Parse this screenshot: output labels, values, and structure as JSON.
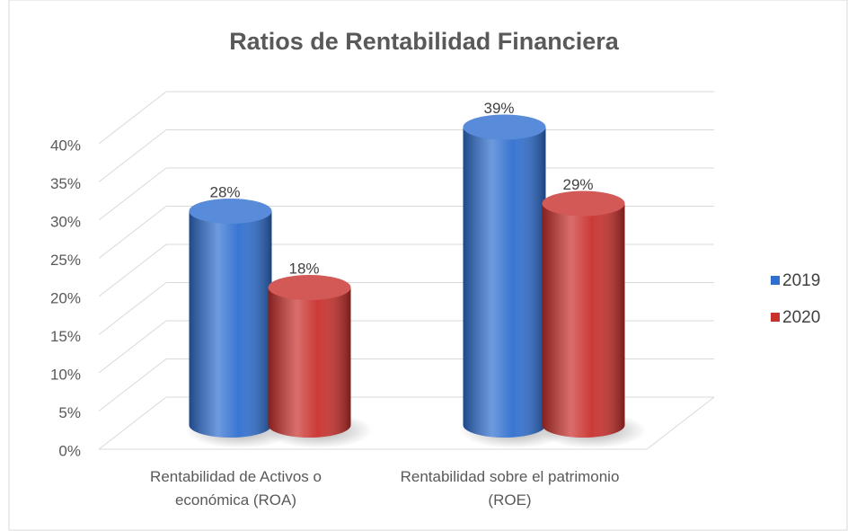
{
  "chart_data": {
    "type": "bar3d",
    "title": "Ratios de Rentabilidad Financiera",
    "categories": [
      "Rentabilidad de Activos o económica (ROA)",
      "Rentabilidad sobre el patrimonio (ROE)"
    ],
    "series": [
      {
        "name": "2019",
        "color": "#2f6fd0",
        "values": [
          28,
          39
        ],
        "value_labels": [
          "28%",
          "39%"
        ]
      },
      {
        "name": "2020",
        "color": "#c9302c",
        "values": [
          18,
          29
        ],
        "value_labels": [
          "18%",
          "29%"
        ]
      }
    ],
    "ylim": [
      0,
      40
    ],
    "yticks": [
      {
        "value": 0,
        "label": "0%"
      },
      {
        "value": 5,
        "label": "5%"
      },
      {
        "value": 10,
        "label": "10%"
      },
      {
        "value": 15,
        "label": "15%"
      },
      {
        "value": 20,
        "label": "20%"
      },
      {
        "value": 25,
        "label": "25%"
      },
      {
        "value": 30,
        "label": "30%"
      },
      {
        "value": 35,
        "label": "35%"
      },
      {
        "value": 40,
        "label": "40%"
      }
    ],
    "grid": true,
    "legend": "right"
  }
}
